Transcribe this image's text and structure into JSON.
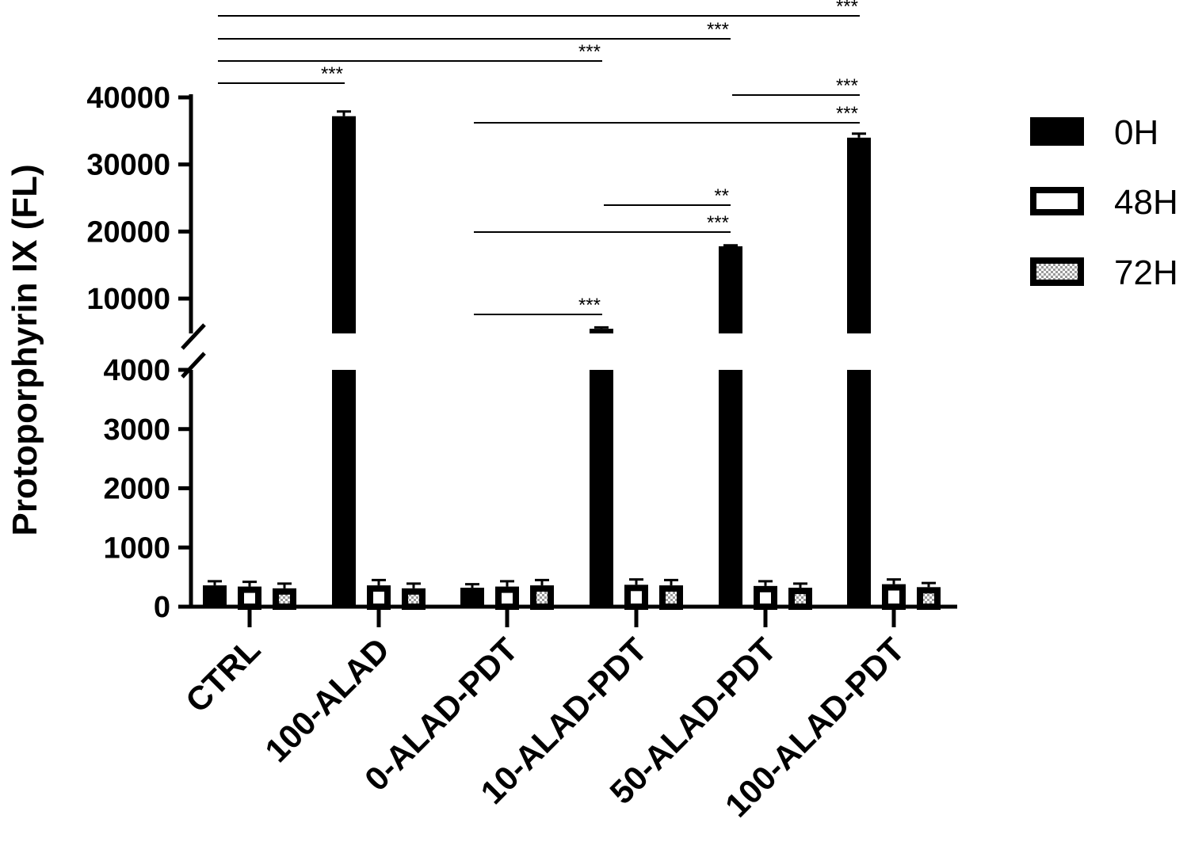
{
  "chart_data": {
    "type": "bar",
    "ylabel": "Protoporphyrin IX (FL)",
    "categories": [
      "CTRL",
      "100-ALAD",
      "0-ALAD-PDT",
      "10-ALAD-PDT",
      "50-ALAD-PDT",
      "100-ALAD-PDT"
    ],
    "series": [
      {
        "name": "0H",
        "values": [
          360,
          37200,
          320,
          5500,
          17800,
          34000
        ],
        "errors": [
          70,
          700,
          60,
          200,
          150,
          600
        ]
      },
      {
        "name": "48H",
        "values": [
          340,
          360,
          340,
          370,
          350,
          380
        ],
        "errors": [
          80,
          90,
          90,
          90,
          80,
          80
        ]
      },
      {
        "name": "72H",
        "values": [
          310,
          310,
          360,
          360,
          320,
          330
        ],
        "errors": [
          80,
          80,
          90,
          90,
          70,
          70
        ]
      }
    ],
    "y_axis": {
      "broken": true,
      "lower_range": [
        0,
        4000
      ],
      "upper_range": [
        4000,
        40000
      ],
      "lower_ticks": [
        "0",
        "1000",
        "2000",
        "3000",
        "4000"
      ],
      "upper_ticks": [
        "10000",
        "20000",
        "30000",
        "40000"
      ]
    },
    "significance": [
      {
        "from": "CTRL",
        "to": "100-ALAD",
        "label": "***"
      },
      {
        "from": "CTRL",
        "to": "10-ALAD-PDT",
        "label": "***"
      },
      {
        "from": "CTRL",
        "to": "50-ALAD-PDT",
        "label": "***"
      },
      {
        "from": "CTRL",
        "to": "100-ALAD-PDT",
        "label": "***"
      },
      {
        "from": "0-ALAD-PDT",
        "to": "10-ALAD-PDT",
        "label": "***"
      },
      {
        "from": "0-ALAD-PDT",
        "to": "50-ALAD-PDT",
        "label": "***"
      },
      {
        "from": "10-ALAD-PDT",
        "to": "50-ALAD-PDT",
        "label": "**"
      },
      {
        "from": "0-ALAD-PDT",
        "to": "100-ALAD-PDT",
        "label": "***"
      },
      {
        "from": "50-ALAD-PDT",
        "to": "100-ALAD-PDT",
        "label": "***"
      }
    ],
    "legend_position": "right",
    "grid": false
  },
  "colors": {
    "bar_0h": "#000000",
    "bar_48h": "#ffffff",
    "bar_72h_fill": "#dddddd",
    "axis": "#000000"
  }
}
